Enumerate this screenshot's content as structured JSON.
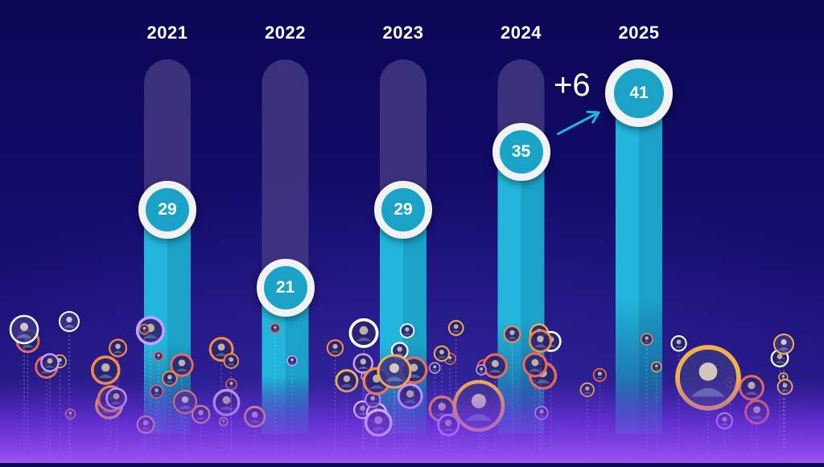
{
  "chart_data": {
    "type": "bar",
    "categories": [
      "2021",
      "2022",
      "2023",
      "2024",
      "2025"
    ],
    "values": [
      29,
      21,
      29,
      35,
      41
    ],
    "title": "",
    "xlabel": "",
    "ylabel": "",
    "annotations": [
      {
        "text": "+6",
        "from": "2024",
        "to": "2025"
      }
    ]
  },
  "colors": {
    "background_top": "#0b0755",
    "background_bottom": "#2a1a8a",
    "bar_fill": "#23b6dc",
    "bar_shade": "#1790b8",
    "bar_track": "#4a3f86",
    "badge_fill": "#1ba3c7",
    "badge_ring": "#f2f2f2",
    "arrow": "#23b6dc",
    "floor_glow": "#9a4dff",
    "people_glow": "#f08a4b"
  },
  "decor": {
    "people_bubbles": [
      "person-icon"
    ]
  }
}
